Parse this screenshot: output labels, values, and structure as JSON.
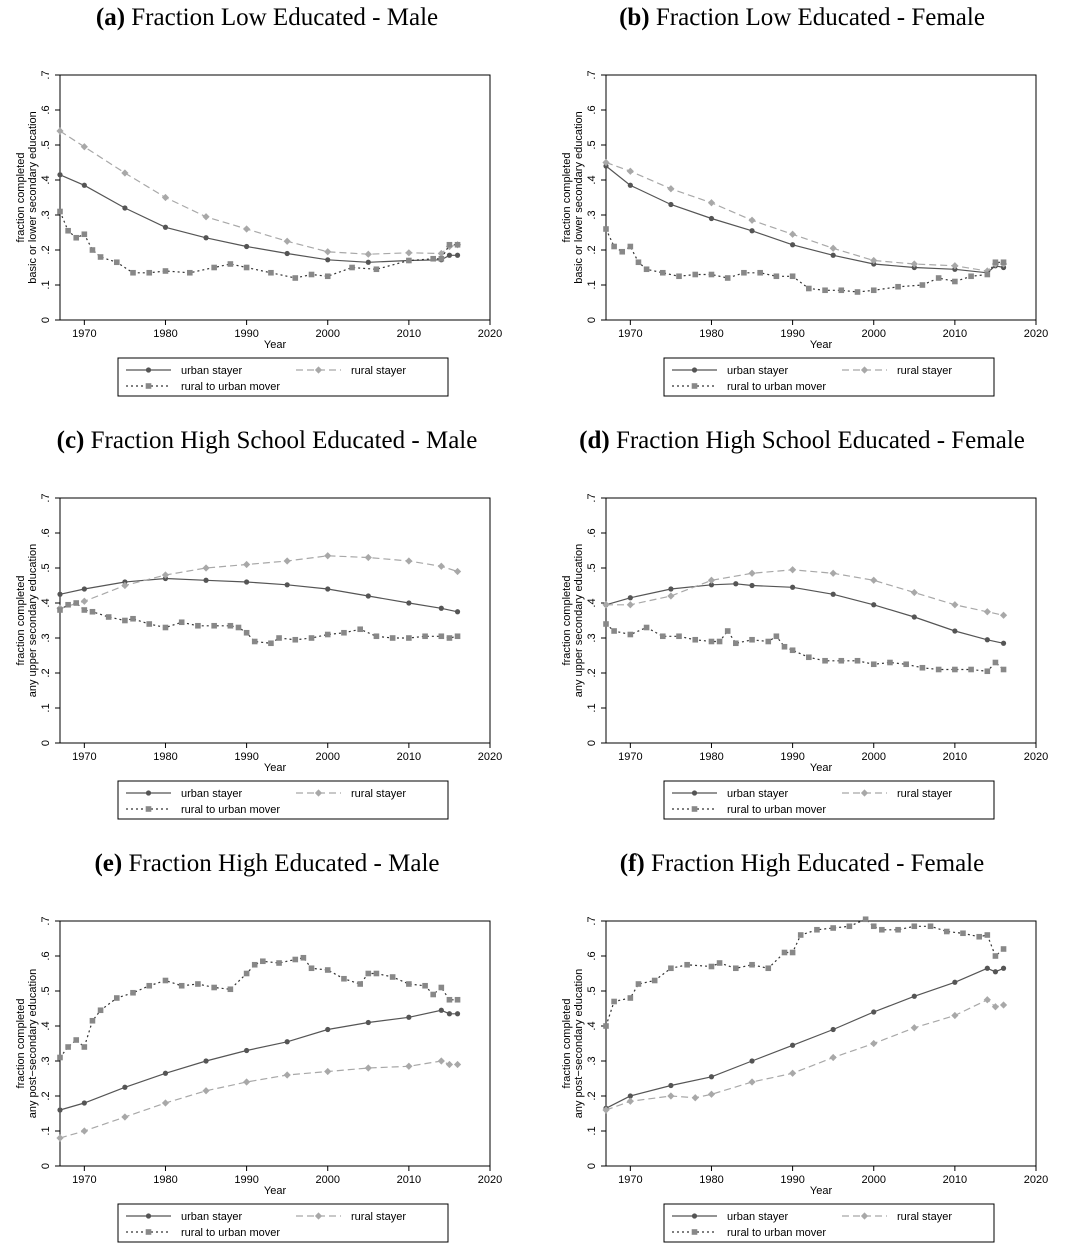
{
  "legend": {
    "urban": "urban stayer",
    "rural": "rural stayer",
    "mover": "rural to urban mover"
  },
  "colors": {
    "urban": "#555555",
    "rural": "#a8a8a8",
    "mover": "#888888"
  },
  "chart_data": [
    {
      "type": "line",
      "panel": "(a)",
      "title": "Fraction Low Educated - Male",
      "xlabel": "Year",
      "ylabel": [
        "fraction completed",
        "basic or lower secondary education"
      ],
      "xlim": [
        1967,
        2020
      ],
      "ylim": [
        0,
        0.7
      ],
      "xticks": [
        "1970",
        "1980",
        "1990",
        "2000",
        "2010",
        "2020"
      ],
      "yticks": [
        "0",
        ".1",
        ".2",
        ".3",
        ".4",
        ".5",
        ".6",
        ".7"
      ],
      "legend": "bottom",
      "series": [
        {
          "name": "urban stayer",
          "x": [
            1967,
            1970,
            1975,
            1980,
            1985,
            1990,
            1995,
            2000,
            2005,
            2010,
            2014,
            2015,
            2016
          ],
          "y": [
            0.415,
            0.385,
            0.32,
            0.265,
            0.235,
            0.21,
            0.19,
            0.172,
            0.165,
            0.17,
            0.172,
            0.185,
            0.185
          ]
        },
        {
          "name": "rural stayer",
          "x": [
            1967,
            1970,
            1975,
            1980,
            1985,
            1990,
            1995,
            2000,
            2005,
            2010,
            2014,
            2015,
            2016
          ],
          "y": [
            0.54,
            0.495,
            0.42,
            0.35,
            0.295,
            0.26,
            0.225,
            0.195,
            0.188,
            0.192,
            0.19,
            0.21,
            0.215
          ]
        },
        {
          "name": "rural to urban mover",
          "x": [
            1967,
            1968,
            1969,
            1970,
            1971,
            1972,
            1974,
            1976,
            1978,
            1980,
            1983,
            1986,
            1988,
            1990,
            1993,
            1996,
            1998,
            2000,
            2003,
            2006,
            2010,
            2013,
            2014,
            2015,
            2016
          ],
          "y": [
            0.31,
            0.255,
            0.235,
            0.245,
            0.2,
            0.18,
            0.165,
            0.135,
            0.135,
            0.14,
            0.135,
            0.15,
            0.16,
            0.15,
            0.135,
            0.12,
            0.13,
            0.125,
            0.15,
            0.145,
            0.17,
            0.175,
            0.175,
            0.215,
            0.215
          ]
        }
      ]
    },
    {
      "type": "line",
      "panel": "(b)",
      "title": "Fraction Low Educated - Female",
      "xlabel": "Year",
      "ylabel": [
        "fraction completed",
        "basic or lower secondary education"
      ],
      "xlim": [
        1967,
        2020
      ],
      "ylim": [
        0,
        0.7
      ],
      "xticks": [
        "1970",
        "1980",
        "1990",
        "2000",
        "2010",
        "2020"
      ],
      "yticks": [
        "0",
        ".1",
        ".2",
        ".3",
        ".4",
        ".5",
        ".6",
        ".7"
      ],
      "legend": "bottom",
      "series": [
        {
          "name": "urban stayer",
          "x": [
            1967,
            1970,
            1975,
            1980,
            1985,
            1990,
            1995,
            2000,
            2005,
            2010,
            2014,
            2015,
            2016
          ],
          "y": [
            0.44,
            0.385,
            0.33,
            0.29,
            0.255,
            0.215,
            0.185,
            0.16,
            0.15,
            0.145,
            0.135,
            0.155,
            0.15
          ]
        },
        {
          "name": "rural stayer",
          "x": [
            1967,
            1970,
            1975,
            1980,
            1985,
            1990,
            1995,
            2000,
            2005,
            2010,
            2014,
            2015,
            2016
          ],
          "y": [
            0.45,
            0.425,
            0.375,
            0.335,
            0.285,
            0.245,
            0.205,
            0.17,
            0.16,
            0.155,
            0.14,
            0.16,
            0.16
          ]
        },
        {
          "name": "rural to urban mover",
          "x": [
            1967,
            1968,
            1969,
            1970,
            1971,
            1972,
            1974,
            1976,
            1978,
            1980,
            1982,
            1984,
            1986,
            1988,
            1990,
            1992,
            1994,
            1996,
            1998,
            2000,
            2003,
            2006,
            2008,
            2010,
            2012,
            2014,
            2015,
            2016
          ],
          "y": [
            0.26,
            0.21,
            0.195,
            0.21,
            0.165,
            0.145,
            0.135,
            0.125,
            0.13,
            0.13,
            0.12,
            0.135,
            0.135,
            0.125,
            0.125,
            0.09,
            0.085,
            0.085,
            0.08,
            0.085,
            0.095,
            0.1,
            0.12,
            0.11,
            0.125,
            0.13,
            0.165,
            0.165
          ]
        }
      ]
    },
    {
      "type": "line",
      "panel": "(c)",
      "title": "Fraction High School Educated - Male",
      "xlabel": "Year",
      "ylabel": [
        "fraction completed",
        "any upper secondary education"
      ],
      "xlim": [
        1967,
        2020
      ],
      "ylim": [
        0,
        0.7
      ],
      "xticks": [
        "1970",
        "1980",
        "1990",
        "2000",
        "2010",
        "2020"
      ],
      "yticks": [
        "0",
        ".1",
        ".2",
        ".3",
        ".4",
        ".5",
        ".6",
        ".7"
      ],
      "legend": "bottom",
      "series": [
        {
          "name": "urban stayer",
          "x": [
            1967,
            1970,
            1975,
            1980,
            1985,
            1990,
            1995,
            2000,
            2005,
            2010,
            2014,
            2016
          ],
          "y": [
            0.425,
            0.44,
            0.46,
            0.47,
            0.465,
            0.46,
            0.452,
            0.44,
            0.42,
            0.4,
            0.385,
            0.375
          ]
        },
        {
          "name": "rural stayer",
          "x": [
            1967,
            1970,
            1975,
            1980,
            1985,
            1990,
            1995,
            2000,
            2005,
            2010,
            2014,
            2016
          ],
          "y": [
            0.385,
            0.405,
            0.45,
            0.48,
            0.5,
            0.51,
            0.52,
            0.535,
            0.53,
            0.52,
            0.505,
            0.49
          ]
        },
        {
          "name": "rural to urban mover",
          "x": [
            1967,
            1968,
            1969,
            1970,
            1971,
            1973,
            1975,
            1976,
            1978,
            1980,
            1982,
            1984,
            1986,
            1988,
            1989,
            1990,
            1991,
            1993,
            1994,
            1996,
            1998,
            2000,
            2002,
            2004,
            2006,
            2008,
            2010,
            2012,
            2014,
            2015,
            2016
          ],
          "y": [
            0.38,
            0.395,
            0.4,
            0.38,
            0.375,
            0.36,
            0.35,
            0.355,
            0.34,
            0.33,
            0.345,
            0.335,
            0.335,
            0.335,
            0.33,
            0.315,
            0.29,
            0.285,
            0.3,
            0.295,
            0.3,
            0.31,
            0.315,
            0.325,
            0.305,
            0.3,
            0.3,
            0.305,
            0.305,
            0.3,
            0.305
          ]
        }
      ]
    },
    {
      "type": "line",
      "panel": "(d)",
      "title": "Fraction High School Educated - Female",
      "xlabel": "Year",
      "ylabel": [
        "fraction completed",
        "any upper secondary education"
      ],
      "xlim": [
        1967,
        2020
      ],
      "ylim": [
        0,
        0.7
      ],
      "xticks": [
        "1970",
        "1980",
        "1990",
        "2000",
        "2010",
        "2020"
      ],
      "yticks": [
        "0",
        ".1",
        ".2",
        ".3",
        ".4",
        ".5",
        ".6",
        ".7"
      ],
      "legend": "bottom",
      "series": [
        {
          "name": "urban stayer",
          "x": [
            1967,
            1970,
            1975,
            1980,
            1983,
            1985,
            1990,
            1995,
            2000,
            2005,
            2010,
            2014,
            2016
          ],
          "y": [
            0.395,
            0.415,
            0.44,
            0.452,
            0.455,
            0.45,
            0.445,
            0.425,
            0.395,
            0.36,
            0.32,
            0.295,
            0.285
          ]
        },
        {
          "name": "rural stayer",
          "x": [
            1967,
            1970,
            1975,
            1980,
            1985,
            1990,
            1995,
            2000,
            2005,
            2010,
            2014,
            2016
          ],
          "y": [
            0.395,
            0.395,
            0.42,
            0.465,
            0.485,
            0.495,
            0.485,
            0.465,
            0.43,
            0.395,
            0.375,
            0.365
          ]
        },
        {
          "name": "rural to urban mover",
          "x": [
            1967,
            1968,
            1970,
            1972,
            1974,
            1976,
            1978,
            1980,
            1981,
            1982,
            1983,
            1985,
            1987,
            1988,
            1989,
            1990,
            1992,
            1994,
            1996,
            1998,
            2000,
            2002,
            2004,
            2006,
            2008,
            2010,
            2012,
            2014,
            2015,
            2016
          ],
          "y": [
            0.34,
            0.32,
            0.31,
            0.33,
            0.305,
            0.305,
            0.295,
            0.29,
            0.29,
            0.32,
            0.285,
            0.295,
            0.29,
            0.305,
            0.275,
            0.265,
            0.245,
            0.235,
            0.235,
            0.235,
            0.225,
            0.23,
            0.225,
            0.215,
            0.21,
            0.21,
            0.21,
            0.205,
            0.23,
            0.21
          ]
        }
      ]
    },
    {
      "type": "line",
      "panel": "(e)",
      "title": "Fraction High Educated - Male",
      "xlabel": "Year",
      "ylabel": [
        "fraction completed",
        "any post−secondary education"
      ],
      "xlim": [
        1967,
        2020
      ],
      "ylim": [
        0,
        0.7
      ],
      "xticks": [
        "1970",
        "1980",
        "1990",
        "2000",
        "2010",
        "2020"
      ],
      "yticks": [
        "0",
        ".1",
        ".2",
        ".3",
        ".4",
        ".5",
        ".6",
        ".7"
      ],
      "legend": "bottom",
      "series": [
        {
          "name": "urban stayer",
          "x": [
            1967,
            1970,
            1975,
            1980,
            1985,
            1990,
            1995,
            2000,
            2005,
            2010,
            2014,
            2015,
            2016
          ],
          "y": [
            0.16,
            0.18,
            0.225,
            0.265,
            0.3,
            0.33,
            0.355,
            0.39,
            0.41,
            0.425,
            0.445,
            0.435,
            0.435
          ]
        },
        {
          "name": "rural stayer",
          "x": [
            1967,
            1970,
            1975,
            1980,
            1985,
            1990,
            1995,
            2000,
            2005,
            2010,
            2014,
            2015,
            2016
          ],
          "y": [
            0.08,
            0.1,
            0.14,
            0.18,
            0.215,
            0.24,
            0.26,
            0.27,
            0.28,
            0.285,
            0.3,
            0.29,
            0.29
          ]
        },
        {
          "name": "rural to urban mover",
          "x": [
            1967,
            1968,
            1969,
            1970,
            1971,
            1972,
            1974,
            1976,
            1978,
            1980,
            1982,
            1984,
            1986,
            1988,
            1990,
            1991,
            1992,
            1994,
            1996,
            1997,
            1998,
            2000,
            2002,
            2004,
            2005,
            2006,
            2008,
            2010,
            2012,
            2013,
            2014,
            2015,
            2016
          ],
          "y": [
            0.31,
            0.34,
            0.36,
            0.34,
            0.415,
            0.445,
            0.48,
            0.495,
            0.515,
            0.53,
            0.515,
            0.52,
            0.51,
            0.505,
            0.55,
            0.575,
            0.585,
            0.58,
            0.59,
            0.595,
            0.565,
            0.56,
            0.535,
            0.52,
            0.55,
            0.55,
            0.54,
            0.52,
            0.515,
            0.49,
            0.51,
            0.475,
            0.475
          ]
        }
      ]
    },
    {
      "type": "line",
      "panel": "(f)",
      "title": "Fraction High Educated - Female",
      "xlabel": "Year",
      "ylabel": [
        "fraction completed",
        "any post−secondary education"
      ],
      "xlim": [
        1967,
        2020
      ],
      "ylim": [
        0,
        0.7
      ],
      "xticks": [
        "1970",
        "1980",
        "1990",
        "2000",
        "2010",
        "2020"
      ],
      "yticks": [
        "0",
        ".1",
        ".2",
        ".3",
        ".4",
        ".5",
        ".6",
        ".7"
      ],
      "legend": "bottom",
      "series": [
        {
          "name": "urban stayer",
          "x": [
            1967,
            1970,
            1975,
            1980,
            1985,
            1990,
            1995,
            2000,
            2005,
            2010,
            2014,
            2015,
            2016
          ],
          "y": [
            0.165,
            0.2,
            0.23,
            0.255,
            0.3,
            0.345,
            0.39,
            0.44,
            0.485,
            0.525,
            0.565,
            0.555,
            0.565
          ]
        },
        {
          "name": "rural stayer",
          "x": [
            1967,
            1970,
            1975,
            1978,
            1980,
            1985,
            1990,
            1995,
            2000,
            2005,
            2010,
            2014,
            2015,
            2016
          ],
          "y": [
            0.16,
            0.185,
            0.2,
            0.195,
            0.205,
            0.24,
            0.265,
            0.31,
            0.35,
            0.395,
            0.43,
            0.475,
            0.455,
            0.46
          ]
        },
        {
          "name": "rural to urban mover",
          "x": [
            1967,
            1968,
            1970,
            1971,
            1973,
            1975,
            1977,
            1980,
            1981,
            1983,
            1985,
            1987,
            1989,
            1990,
            1991,
            1993,
            1995,
            1997,
            1999,
            2000,
            2001,
            2003,
            2005,
            2007,
            2009,
            2011,
            2013,
            2014,
            2015,
            2016
          ],
          "y": [
            0.4,
            0.47,
            0.48,
            0.52,
            0.53,
            0.565,
            0.575,
            0.57,
            0.58,
            0.565,
            0.575,
            0.565,
            0.61,
            0.61,
            0.66,
            0.675,
            0.68,
            0.685,
            0.705,
            0.685,
            0.675,
            0.675,
            0.685,
            0.685,
            0.67,
            0.665,
            0.655,
            0.66,
            0.6,
            0.62
          ]
        }
      ]
    }
  ]
}
